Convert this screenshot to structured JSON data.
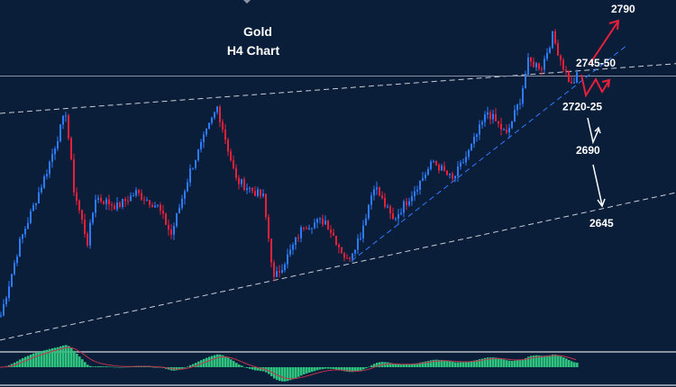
{
  "chart_data": {
    "type": "candlestick",
    "title": "Gold",
    "subtitle": "H4  Chart",
    "xlim": [
      0,
      250
    ],
    "ylim": [
      2561,
      2787
    ],
    "price_path": [
      [
        0,
        2584
      ],
      [
        7,
        2631
      ],
      [
        17,
        2677
      ],
      [
        24,
        2715
      ],
      [
        27,
        2665
      ],
      [
        32,
        2631
      ],
      [
        35,
        2660
      ],
      [
        43,
        2654
      ],
      [
        50,
        2663
      ],
      [
        58,
        2654
      ],
      [
        63,
        2636
      ],
      [
        70,
        2677
      ],
      [
        80,
        2718
      ],
      [
        87,
        2671
      ],
      [
        97,
        2660
      ],
      [
        101,
        2607
      ],
      [
        107,
        2625
      ],
      [
        112,
        2642
      ],
      [
        120,
        2645
      ],
      [
        128,
        2619
      ],
      [
        133,
        2636
      ],
      [
        138,
        2668
      ],
      [
        145,
        2645
      ],
      [
        153,
        2665
      ],
      [
        160,
        2683
      ],
      [
        167,
        2671
      ],
      [
        173,
        2689
      ],
      [
        180,
        2715
      ],
      [
        187,
        2700
      ],
      [
        192,
        2723
      ],
      [
        195,
        2747
      ],
      [
        200,
        2744
      ],
      [
        204,
        2764
      ],
      [
        208,
        2744
      ],
      [
        211,
        2732
      ],
      [
        213,
        2738
      ]
    ],
    "colors": {
      "bull": "#2f7bff",
      "bear": "#e8203a",
      "background": "#0a1e3a",
      "hist": "#2ec27e",
      "signal": "#c0334d"
    },
    "lines": [
      {
        "name": "upper-channel",
        "style": "dashed",
        "color": "#c8ccd4",
        "points": [
          [
            0,
            2714
          ],
          [
            250,
            2746
          ]
        ]
      },
      {
        "name": "horizontal-level",
        "style": "solid",
        "color": "#8a93a3",
        "points": [
          [
            0,
            2738
          ],
          [
            250,
            2738
          ]
        ]
      },
      {
        "name": "lower-channel",
        "style": "dashed",
        "color": "#c8ccd4",
        "points": [
          [
            0,
            2568
          ],
          [
            250,
            2663
          ]
        ]
      },
      {
        "name": "blue-trendline",
        "style": "dashed",
        "color": "#2f7bff",
        "points": [
          [
            130,
            2619
          ],
          [
            232,
            2758
          ]
        ]
      }
    ],
    "annotations": [
      {
        "text": "2790",
        "x": 226,
        "price": 2779,
        "color": "#ffffff"
      },
      {
        "text": "2745-50",
        "x": 213,
        "price": 2744,
        "color": "#ffffff"
      },
      {
        "text": "2720-25",
        "x": 208,
        "price": 2716,
        "color": "#2f8fff"
      },
      {
        "text": "2690",
        "x": 213,
        "price": 2688,
        "color": "#ffffff"
      },
      {
        "text": "2645",
        "x": 218,
        "price": 2641,
        "color": "#ffffff"
      }
    ]
  }
}
